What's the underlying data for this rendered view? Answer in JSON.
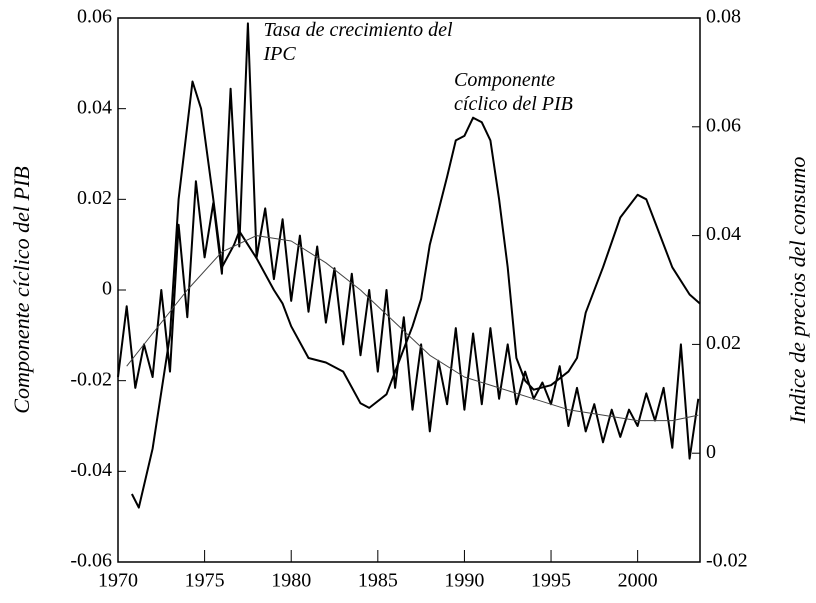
{
  "chart_data": {
    "type": "line",
    "ylabel": "Componente cíclico del PIB",
    "y2label": "Indice de precios del consumo",
    "annotations": [
      {
        "lines": [
          "Tasa de crecimiento del",
          "IPC"
        ],
        "x": 1978.4,
        "y": 0.057
      },
      {
        "lines": [
          "Componente",
          "cíclico del PIB"
        ],
        "x": 1989.4,
        "y": 0.046
      }
    ],
    "xlim": [
      1970,
      2003.6
    ],
    "xticks": [
      1970,
      1975,
      1980,
      1985,
      1990,
      1995,
      2000
    ],
    "ylim": [
      -0.06,
      0.06
    ],
    "yticks": [
      -0.06,
      -0.04,
      -0.02,
      0,
      0.02,
      0.04,
      0.06
    ],
    "y2lim": [
      -0.02,
      0.08
    ],
    "y2ticks": [
      -0.02,
      0,
      0.02,
      0.04,
      0.06,
      0.08
    ],
    "series": [
      {
        "color": "#000000",
        "width": 2,
        "x": [
          1970.8,
          1971.2,
          1972,
          1973,
          1973.5,
          1974.3,
          1974.8,
          1975.5,
          1976,
          1976.7,
          1977,
          1977.5,
          1978,
          1979,
          1979.5,
          1980,
          1981,
          1982,
          1983,
          1984,
          1984.5,
          1985.5,
          1986.5,
          1987,
          1987.5,
          1988,
          1989,
          1989.5,
          1990,
          1990.5,
          1991,
          1991.5,
          1992,
          1992.5,
          1993,
          1993.5,
          1994,
          1995,
          1996,
          1996.5,
          1997,
          1998,
          1999,
          2000,
          2000.5,
          2001,
          2002,
          2003,
          2003.6
        ],
        "values": [
          -0.045,
          -0.048,
          -0.035,
          -0.01,
          0.02,
          0.046,
          0.04,
          0.02,
          0.005,
          0.01,
          0.013,
          0.01,
          0.007,
          0.0,
          -0.003,
          -0.008,
          -0.015,
          -0.016,
          -0.018,
          -0.025,
          -0.026,
          -0.023,
          -0.013,
          -0.008,
          -0.002,
          0.01,
          0.025,
          0.033,
          0.034,
          0.038,
          0.037,
          0.033,
          0.02,
          0.005,
          -0.015,
          -0.02,
          -0.022,
          -0.021,
          -0.018,
          -0.015,
          -0.005,
          0.005,
          0.016,
          0.021,
          0.02,
          0.015,
          0.005,
          -0.001,
          -0.003
        ]
      },
      {
        "color": "#000000",
        "width": 2,
        "axis": "y2",
        "x": [
          1970,
          1970.5,
          1971,
          1971.5,
          1972,
          1972.5,
          1973,
          1973.5,
          1974,
          1974.5,
          1975,
          1975.5,
          1976,
          1976.5,
          1977,
          1977.5,
          1978,
          1978.5,
          1979,
          1979.5,
          1980,
          1980.5,
          1981,
          1981.5,
          1982,
          1982.5,
          1983,
          1983.5,
          1984,
          1984.5,
          1985,
          1985.5,
          1986,
          1986.5,
          1987,
          1987.5,
          1988,
          1988.5,
          1989,
          1989.5,
          1990,
          1990.5,
          1991,
          1991.5,
          1992,
          1992.5,
          1993,
          1993.5,
          1994,
          1994.5,
          1995,
          1995.5,
          1996,
          1996.5,
          1997,
          1997.5,
          1998,
          1998.5,
          1999,
          1999.5,
          2000,
          2000.5,
          2001,
          2001.5,
          2002,
          2002.5,
          2003,
          2003.5
        ],
        "values": [
          0.014,
          0.027,
          0.012,
          0.02,
          0.014,
          0.03,
          0.015,
          0.042,
          0.025,
          0.05,
          0.036,
          0.046,
          0.033,
          0.067,
          0.038,
          0.079,
          0.036,
          0.045,
          0.032,
          0.043,
          0.028,
          0.04,
          0.026,
          0.038,
          0.024,
          0.034,
          0.02,
          0.033,
          0.018,
          0.03,
          0.015,
          0.03,
          0.012,
          0.025,
          0.008,
          0.02,
          0.004,
          0.017,
          0.009,
          0.023,
          0.008,
          0.022,
          0.009,
          0.023,
          0.01,
          0.02,
          0.009,
          0.015,
          0.01,
          0.013,
          0.009,
          0.016,
          0.005,
          0.012,
          0.004,
          0.009,
          0.002,
          0.008,
          0.003,
          0.008,
          0.005,
          0.011,
          0.006,
          0.012,
          0.001,
          0.02,
          -0.001,
          0.01
        ]
      },
      {
        "color": "#444444",
        "width": 1,
        "axis": "y2",
        "x": [
          1970.5,
          1972,
          1974,
          1976,
          1978,
          1980,
          1982,
          1984,
          1986,
          1988,
          1990,
          1992,
          1994,
          1996,
          1998,
          2000,
          2002,
          2003.5
        ],
        "values": [
          0.016,
          0.022,
          0.03,
          0.037,
          0.04,
          0.039,
          0.035,
          0.03,
          0.024,
          0.018,
          0.014,
          0.012,
          0.01,
          0.008,
          0.007,
          0.006,
          0.006,
          0.007
        ]
      }
    ]
  }
}
